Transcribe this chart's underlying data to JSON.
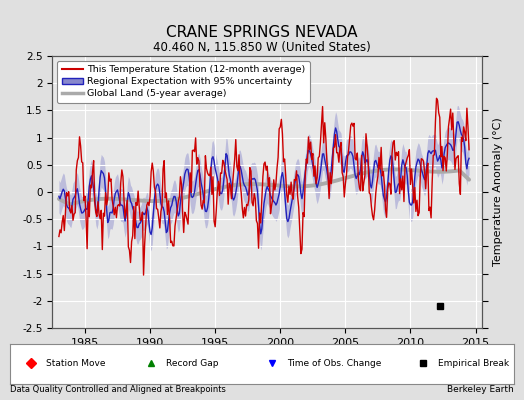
{
  "title": "CRANE SPRINGS NEVADA",
  "subtitle": "40.460 N, 115.850 W (United States)",
  "xlabel_left": "Data Quality Controlled and Aligned at Breakpoints",
  "xlabel_right": "Berkeley Earth",
  "ylabel": "Temperature Anomaly (°C)",
  "xlim": [
    1982.5,
    2015.5
  ],
  "ylim": [
    -2.5,
    2.5
  ],
  "yticks": [
    -2.5,
    -2,
    -1.5,
    -1,
    -0.5,
    0,
    0.5,
    1,
    1.5,
    2,
    2.5
  ],
  "xticks": [
    1985,
    1990,
    1995,
    2000,
    2005,
    2010,
    2015
  ],
  "bg_color": "#e0e0e0",
  "plot_bg_color": "#e8e8e8",
  "grid_color": "#ffffff",
  "empirical_break_x": 2012.3,
  "empirical_break_y": -2.1,
  "legend_labels": [
    "This Temperature Station (12-month average)",
    "Regional Expectation with 95% uncertainty",
    "Global Land (5-year average)"
  ],
  "red_color": "#cc0000",
  "blue_color": "#2222bb",
  "blue_fill": "#8888cc",
  "gray_color": "#aaaaaa",
  "seed": 7
}
